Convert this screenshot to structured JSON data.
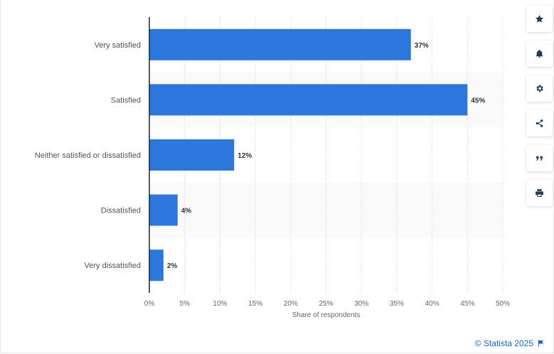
{
  "chart_data": {
    "type": "bar",
    "orientation": "horizontal",
    "categories": [
      "Very satisfied",
      "Satisfied",
      "Neither satisfied or dissatisfied",
      "Dissatisfied",
      "Very dissatisfied"
    ],
    "values": [
      37,
      45,
      12,
      4,
      2
    ],
    "value_labels": [
      "37%",
      "45%",
      "12%",
      "4%",
      "2%"
    ],
    "xlabel": "Share of respondents",
    "xlim": [
      0,
      50
    ],
    "ticks": [
      0,
      5,
      10,
      15,
      20,
      25,
      30,
      35,
      40,
      45,
      50
    ],
    "tick_labels": [
      "0%",
      "5%",
      "10%",
      "15%",
      "20%",
      "25%",
      "30%",
      "35%",
      "40%",
      "45%",
      "50%"
    ],
    "grid": true,
    "bar_color": "#2b77de"
  },
  "toolbar": {
    "items": [
      {
        "name": "bookmark-button",
        "icon": "star-icon"
      },
      {
        "name": "notification-button",
        "icon": "bell-icon"
      },
      {
        "name": "settings-button",
        "icon": "gear-icon"
      },
      {
        "name": "share-button",
        "icon": "share-icon"
      },
      {
        "name": "cite-button",
        "icon": "quote-icon"
      },
      {
        "name": "print-button",
        "icon": "printer-icon"
      }
    ]
  },
  "credit": {
    "text": "© Statista 2025",
    "icon": "flag-icon"
  }
}
